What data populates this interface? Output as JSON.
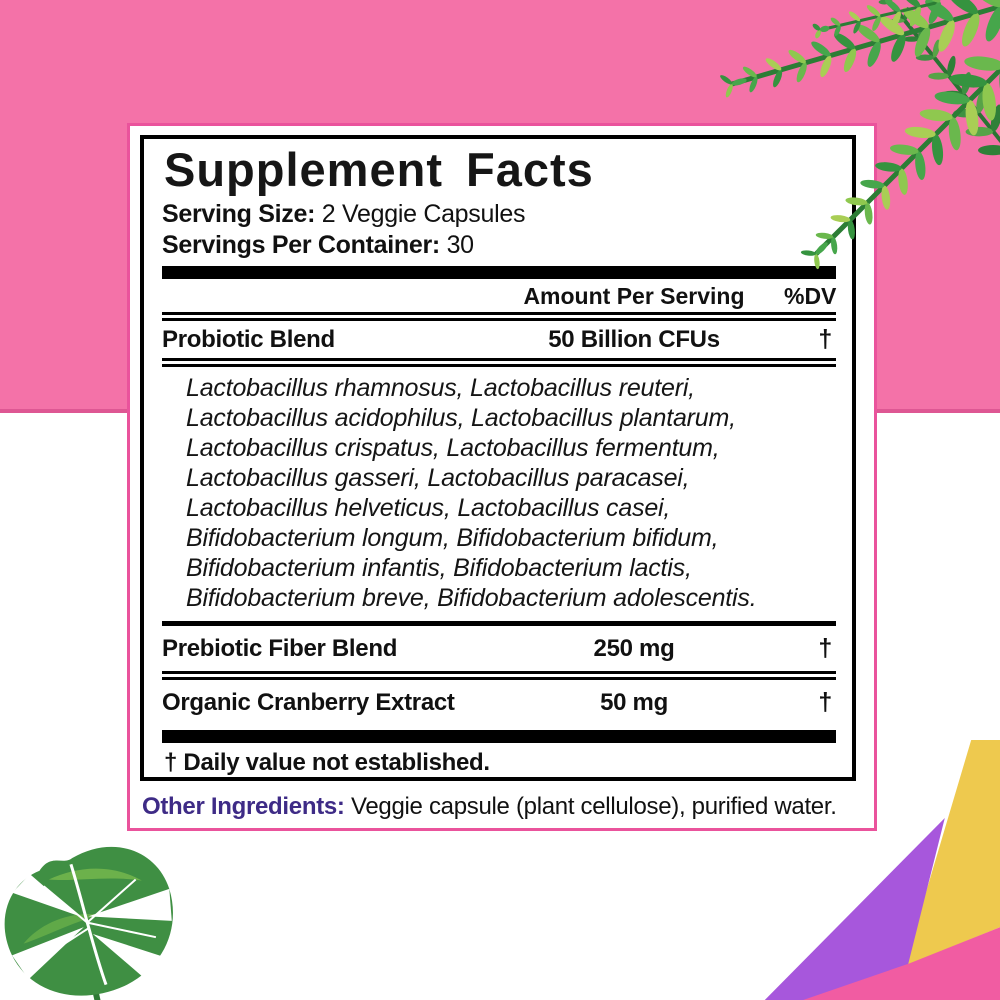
{
  "panel": {
    "title": "Supplement Facts",
    "serving_size_label": "Serving Size:",
    "serving_size_value": "2 Veggie Capsules",
    "servings_per_container_label": "Servings Per Container:",
    "servings_per_container_value": "30",
    "header": {
      "amount": "Amount Per Serving",
      "dv": "%DV"
    },
    "rows": [
      {
        "name": "Probiotic Blend",
        "amount": "50 Billion CFUs",
        "dv": "†"
      },
      {
        "name": "Prebiotic Fiber Blend",
        "amount": "250 mg",
        "dv": "†"
      },
      {
        "name": "Organic Cranberry Extract",
        "amount": "50 mg",
        "dv": "†"
      }
    ],
    "strain_lines": [
      "Lactobacillus rhamnosus, Lactobacillus reuteri,",
      "Lactobacillus acidophilus, Lactobacillus plantarum,",
      "Lactobacillus crispatus, Lactobacillus fermentum,",
      "Lactobacillus gasseri, Lactobacillus paracasei,",
      "Lactobacillus helveticus, Lactobacillus casei,",
      "Bifidobacterium longum, Bifidobacterium bifidum,",
      "Bifidobacterium infantis, Bifidobacterium lactis,",
      "Bifidobacterium breve, Bifidobacterium adolescentis."
    ],
    "footnote": "† Daily value not established.",
    "other_ingredients_label": "Other Ingredients:",
    "other_ingredients_value": " Veggie capsule (plant cellulose), purified water."
  },
  "colors": {
    "background_pink": "#F472A8",
    "background_pink_edge": "#DE5793",
    "card_border_pink": "#EA539C",
    "other_ingredients_purple": "#3E2B86",
    "triangle_yellow": "#EEC94E",
    "triangle_purple": "#A757DC",
    "triangle_pink": "#F15CA2",
    "fern_green": "#46A64B",
    "monstera_green": "#3F8F43"
  },
  "decorations": {
    "top_right": "fern-leaves-icon",
    "bottom_left": "monstera-leaf-icon",
    "bottom_right": "geometric-triangles"
  }
}
